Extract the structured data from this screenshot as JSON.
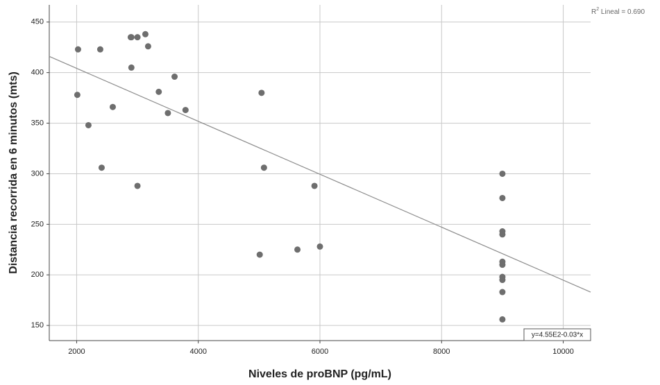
{
  "chart_data": {
    "type": "scatter",
    "xlabel": "Niveles de proBNP  (pg/mL)",
    "ylabel": "Distancia recorrida en 6 minutos (mts)",
    "xlim": [
      1550,
      10450
    ],
    "ylim": [
      135,
      467
    ],
    "xticks": [
      2000,
      4000,
      6000,
      8000,
      10000
    ],
    "yticks": [
      150,
      200,
      250,
      300,
      350,
      400,
      450
    ],
    "grid": true,
    "series": [
      {
        "color": "#6e6e6e",
        "x": [
          2023,
          2011,
          2194,
          2411,
          2388,
          2594,
          2890,
          2900,
          3000,
          3130,
          3175,
          2900,
          3000,
          3350,
          3500,
          3610,
          3790,
          5040,
          5080,
          5010,
          5630,
          5910,
          6000,
          9000,
          9000,
          9000,
          9000,
          9000,
          9000,
          9000,
          9000,
          9000,
          9000
        ],
        "values": [
          423,
          378,
          348,
          306,
          423,
          366,
          435,
          435,
          435,
          438,
          426,
          405,
          288,
          381,
          360,
          396,
          363,
          380,
          306,
          220,
          225,
          288,
          228,
          300,
          276,
          243,
          240,
          213,
          210,
          198,
          195,
          183,
          156
        ]
      }
    ],
    "fit_line": {
      "color": "#8c8c8c",
      "x": [
        1550,
        10450
      ],
      "values": [
        416,
        183
      ]
    },
    "equation": "y=4.55E2-0.03*x",
    "r2": {
      "prefix": "R",
      "sup": "2",
      "text": " Lineal = 0.690"
    }
  }
}
